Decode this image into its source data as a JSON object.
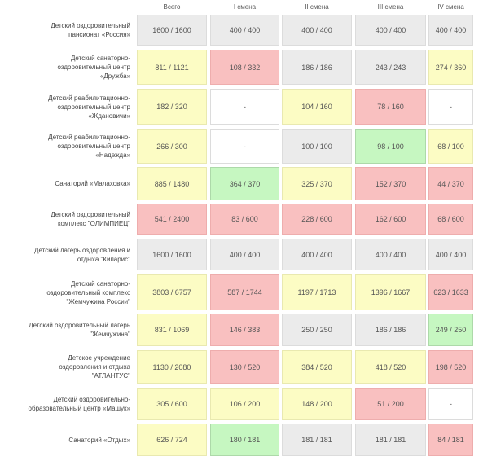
{
  "colors": {
    "gray": "#ebebeb",
    "white": "#ffffff",
    "yellow": "#fcfcc4",
    "red": "#f9c0c0",
    "green": "#c6f7c1"
  },
  "headers": [
    "Всего",
    "I смена",
    "II смена",
    "III смена",
    "IV смена"
  ],
  "rows": [
    {
      "label": "Детский оздоровительный\nпансионат «Россия»",
      "cells": [
        {
          "value": "1600 / 1600",
          "status": "gray"
        },
        {
          "value": "400 / 400",
          "status": "gray"
        },
        {
          "value": "400 / 400",
          "status": "gray"
        },
        {
          "value": "400 / 400",
          "status": "gray"
        },
        {
          "value": "400 / 400",
          "status": "gray"
        }
      ]
    },
    {
      "label": "Детский санаторно-\nоздоровительный центр\n«Дружба»",
      "cells": [
        {
          "value": "811 / 1121",
          "status": "yellow"
        },
        {
          "value": "108 / 332",
          "status": "red"
        },
        {
          "value": "186 / 186",
          "status": "gray"
        },
        {
          "value": "243 / 243",
          "status": "gray"
        },
        {
          "value": "274 / 360",
          "status": "yellow"
        }
      ]
    },
    {
      "label": "Детский реабилитационно-\nоздоровительный центр\n«Ждановичи»",
      "cells": [
        {
          "value": "182 / 320",
          "status": "yellow"
        },
        {
          "value": "-",
          "status": "white"
        },
        {
          "value": "104 / 160",
          "status": "yellow"
        },
        {
          "value": "78 / 160",
          "status": "red"
        },
        {
          "value": "-",
          "status": "white"
        }
      ]
    },
    {
      "label": "Детский реабилитационно-\nоздоровительный центр\n«Надежда»",
      "cells": [
        {
          "value": "266 / 300",
          "status": "yellow"
        },
        {
          "value": "-",
          "status": "white"
        },
        {
          "value": "100 / 100",
          "status": "gray"
        },
        {
          "value": "98 / 100",
          "status": "green"
        },
        {
          "value": "68 / 100",
          "status": "yellow"
        }
      ]
    },
    {
      "label": "Санаторий «Малаховка»",
      "cells": [
        {
          "value": "885 / 1480",
          "status": "yellow"
        },
        {
          "value": "364 / 370",
          "status": "green"
        },
        {
          "value": "325 / 370",
          "status": "yellow"
        },
        {
          "value": "152 / 370",
          "status": "red"
        },
        {
          "value": "44 / 370",
          "status": "red"
        }
      ]
    },
    {
      "label": "Детский оздоровительный\nкомплекс \"ОЛИМПИЕЦ\"",
      "cells": [
        {
          "value": "541 / 2400",
          "status": "red"
        },
        {
          "value": "83 / 600",
          "status": "red"
        },
        {
          "value": "228 / 600",
          "status": "red"
        },
        {
          "value": "162 / 600",
          "status": "red"
        },
        {
          "value": "68 / 600",
          "status": "red"
        }
      ]
    },
    {
      "label": "Детский лагерь оздоровления и\nотдыха \"Кипарис\"",
      "cells": [
        {
          "value": "1600 / 1600",
          "status": "gray"
        },
        {
          "value": "400 / 400",
          "status": "gray"
        },
        {
          "value": "400 / 400",
          "status": "gray"
        },
        {
          "value": "400 / 400",
          "status": "gray"
        },
        {
          "value": "400 / 400",
          "status": "gray"
        }
      ]
    },
    {
      "label": "Детский санаторно-\nоздоровительный комплекс\n\"Жемчужина России\"",
      "cells": [
        {
          "value": "3803 / 6757",
          "status": "yellow"
        },
        {
          "value": "587 / 1744",
          "status": "red"
        },
        {
          "value": "1197 / 1713",
          "status": "yellow"
        },
        {
          "value": "1396 / 1667",
          "status": "yellow"
        },
        {
          "value": "623 / 1633",
          "status": "red"
        }
      ]
    },
    {
      "label": "Детский оздоровительный лагерь\n\"Жемчужина\"",
      "cells": [
        {
          "value": "831 / 1069",
          "status": "yellow"
        },
        {
          "value": "146 / 383",
          "status": "red"
        },
        {
          "value": "250 / 250",
          "status": "gray"
        },
        {
          "value": "186 / 186",
          "status": "gray"
        },
        {
          "value": "249 / 250",
          "status": "green"
        }
      ]
    },
    {
      "label": "Детское учреждение\nоздоровления и отдыха\n\"АТЛАНТУС\"",
      "cells": [
        {
          "value": "1130 / 2080",
          "status": "yellow"
        },
        {
          "value": "130 / 520",
          "status": "red"
        },
        {
          "value": "384 / 520",
          "status": "yellow"
        },
        {
          "value": "418 / 520",
          "status": "yellow"
        },
        {
          "value": "198 / 520",
          "status": "red"
        }
      ]
    },
    {
      "label": "Детский оздоровительно-\nобразовательный центр «Машук»",
      "cells": [
        {
          "value": "305 / 600",
          "status": "yellow"
        },
        {
          "value": "106 / 200",
          "status": "yellow"
        },
        {
          "value": "148 / 200",
          "status": "yellow"
        },
        {
          "value": "51 / 200",
          "status": "red"
        },
        {
          "value": "-",
          "status": "white"
        }
      ]
    },
    {
      "label": "Санаторий «Отдых»",
      "cells": [
        {
          "value": "626 / 724",
          "status": "yellow"
        },
        {
          "value": "180 / 181",
          "status": "green"
        },
        {
          "value": "181 / 181",
          "status": "gray"
        },
        {
          "value": "181 / 181",
          "status": "gray"
        },
        {
          "value": "84 / 181",
          "status": "red"
        }
      ]
    }
  ]
}
